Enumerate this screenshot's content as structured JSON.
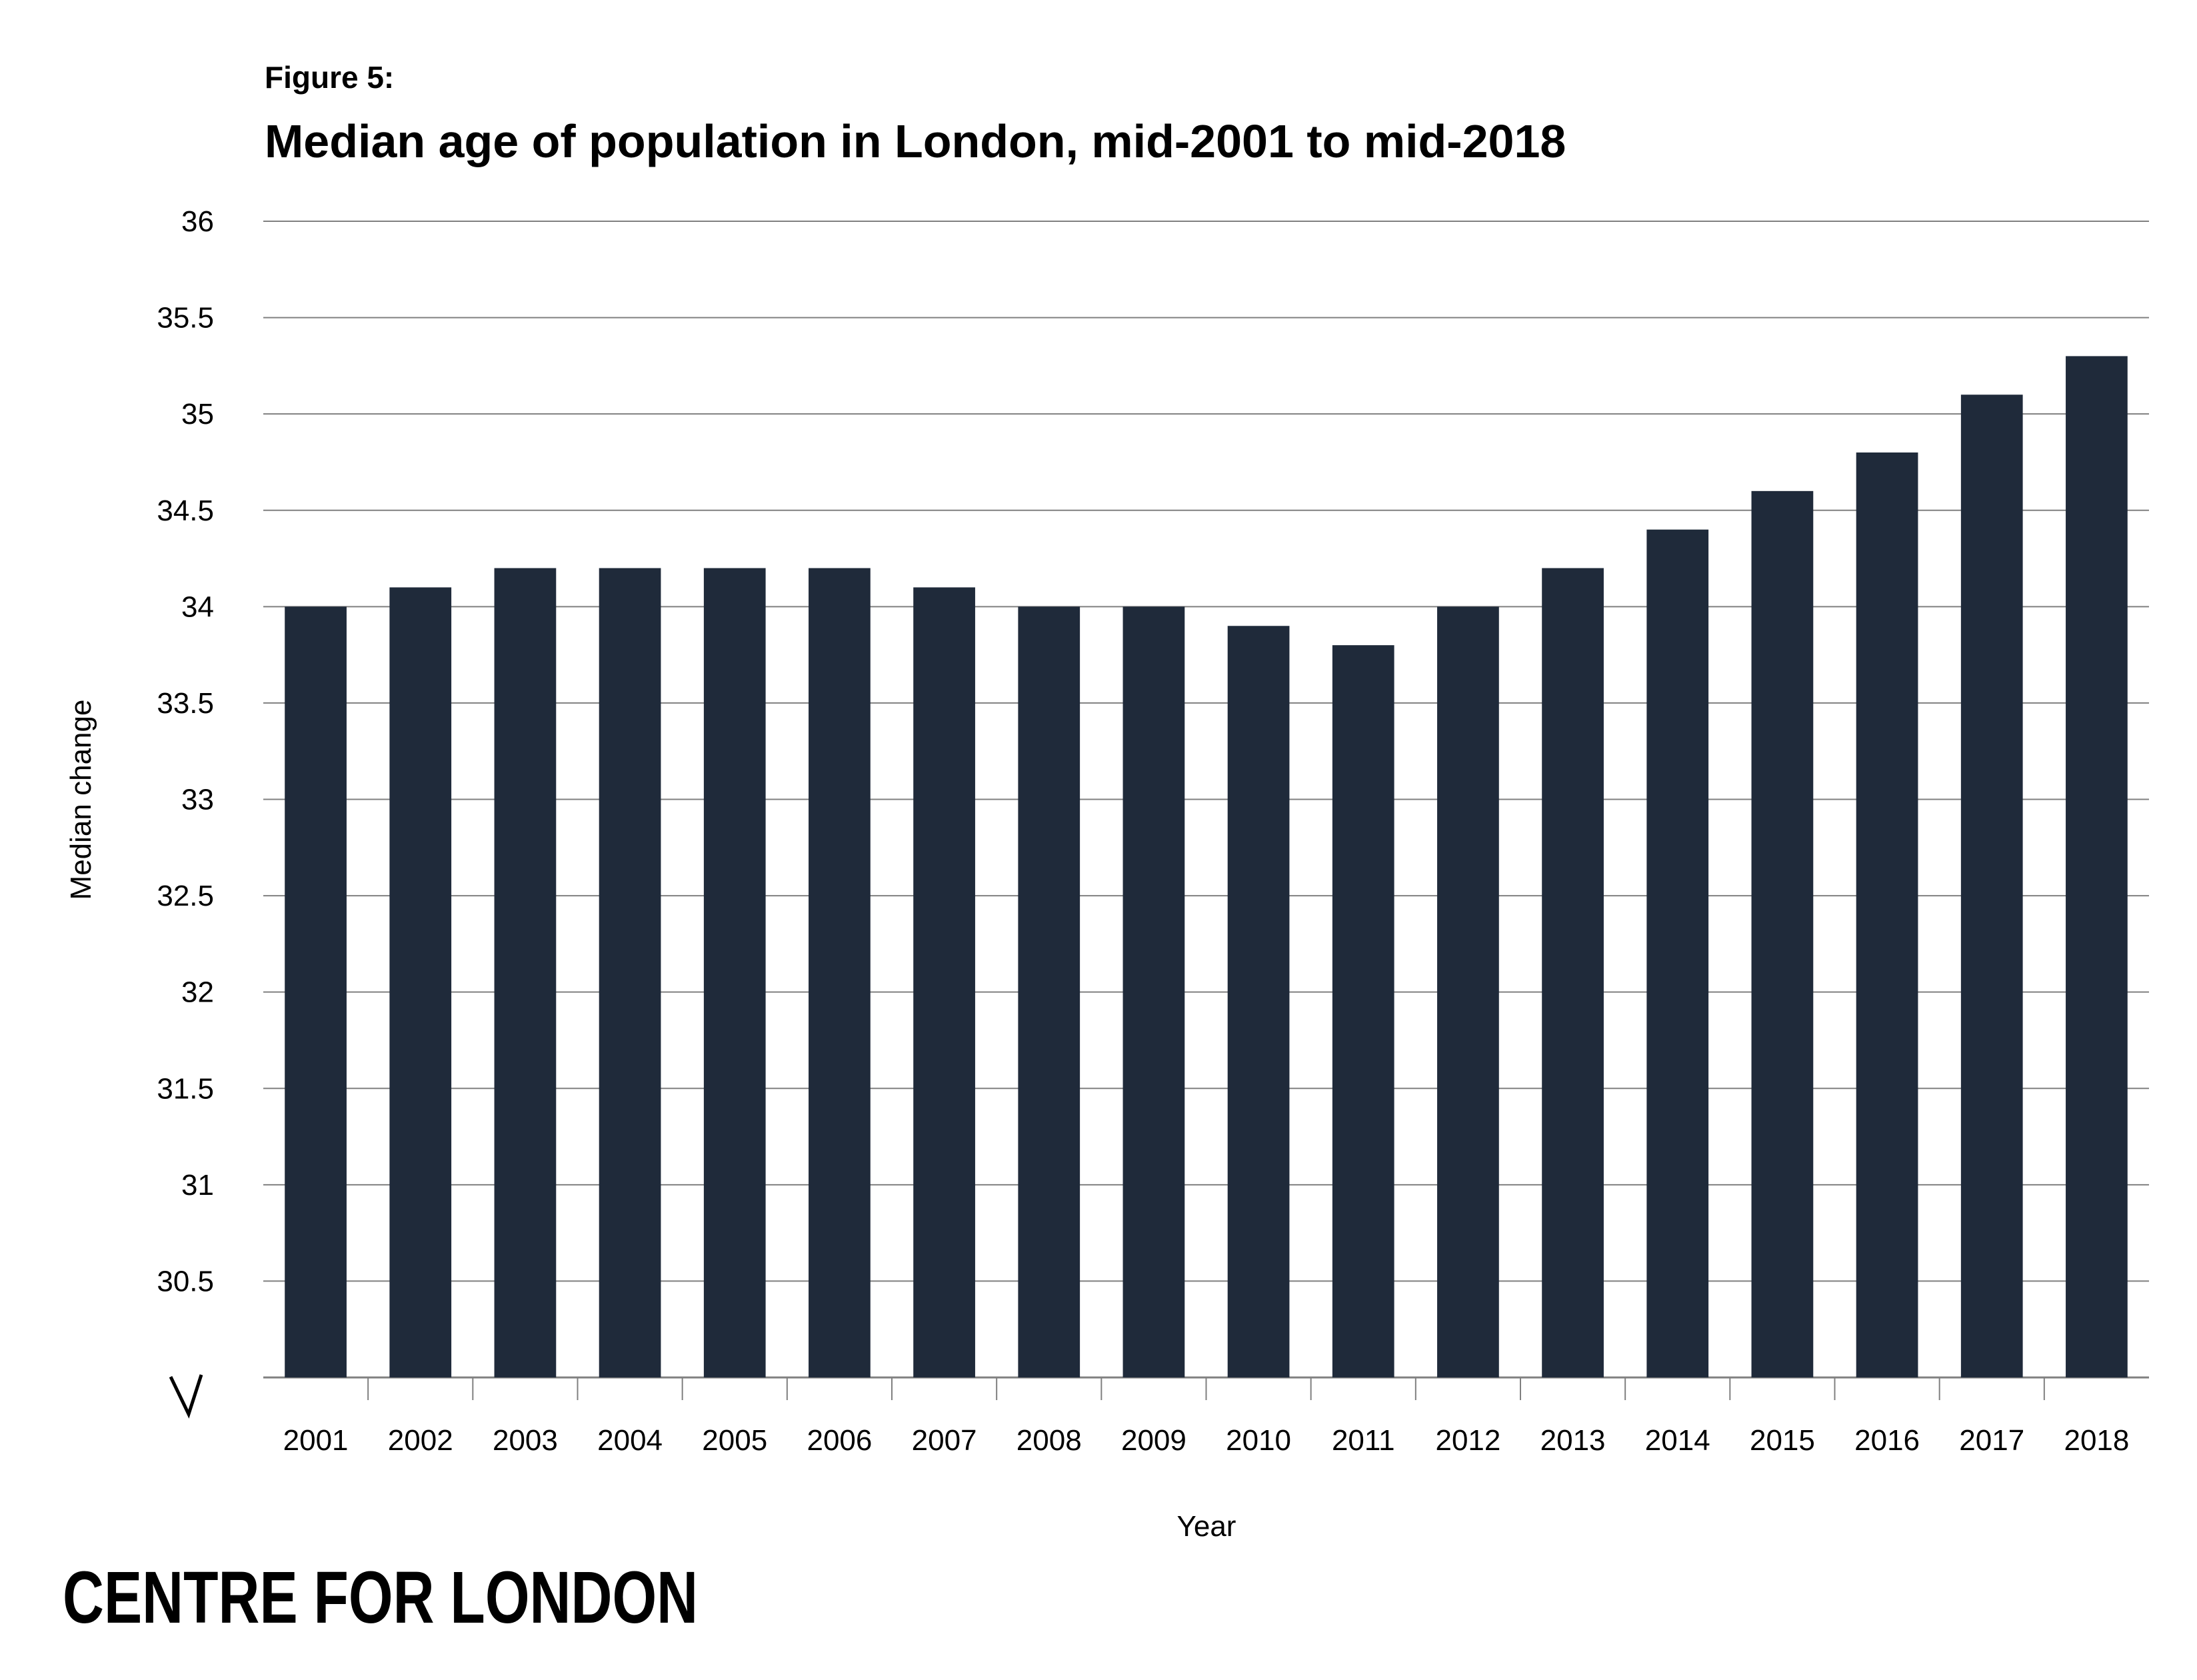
{
  "figure_label": "Figure 5:",
  "logo_text": "CENTRE FOR LONDON",
  "colors": {
    "bar": "#1f2a3a",
    "grid": "#808080",
    "text": "#000000"
  },
  "chart_data": {
    "type": "bar",
    "title": "Median age of population in London, mid-2001 to mid-2018",
    "xlabel": "Year",
    "ylabel": "Median change",
    "ylim": [
      30,
      36
    ],
    "y_axis_break": true,
    "yticks": [
      "30.5",
      "31",
      "31.5",
      "32",
      "32.5",
      "33",
      "33.5",
      "34",
      "34.5",
      "35",
      "35.5",
      "36"
    ],
    "grid": true,
    "categories": [
      "2001",
      "2002",
      "2003",
      "2004",
      "2005",
      "2006",
      "2007",
      "2008",
      "2009",
      "2010",
      "2011",
      "2012",
      "2013",
      "2014",
      "2015",
      "2016",
      "2017",
      "2018"
    ],
    "values": [
      34.0,
      34.1,
      34.2,
      34.2,
      34.2,
      34.2,
      34.1,
      34.0,
      34.0,
      33.9,
      33.8,
      34.0,
      34.2,
      34.4,
      34.6,
      34.8,
      35.1,
      35.3
    ]
  }
}
